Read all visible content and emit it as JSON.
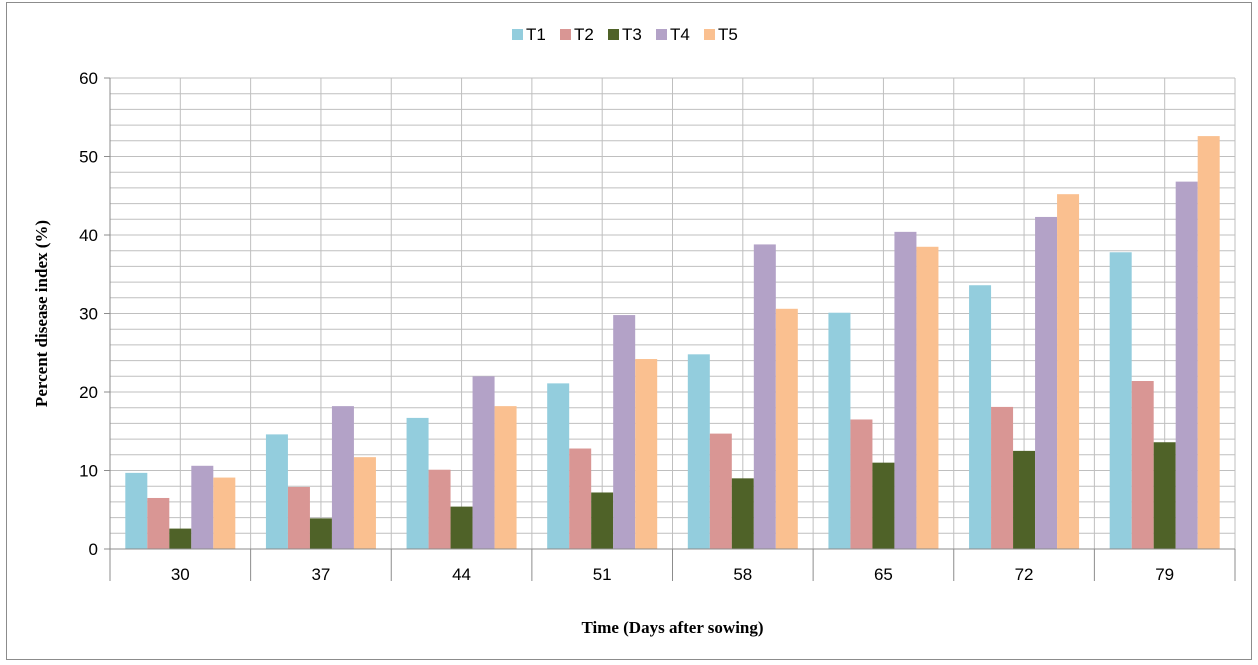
{
  "chart_data": {
    "type": "bar",
    "title": "",
    "xlabel": "Time (Days after sowing)",
    "ylabel": "Percent disease index (%)",
    "categories": [
      "30",
      "37",
      "44",
      "51",
      "58",
      "65",
      "72",
      "79"
    ],
    "ylim": [
      0,
      60
    ],
    "yticks": [
      "0",
      "10",
      "20",
      "30",
      "40",
      "50",
      "60"
    ],
    "grid": true,
    "legend_position": "top",
    "series": [
      {
        "name": "T1",
        "color": "#93cddd",
        "values": [
          9.7,
          14.6,
          16.7,
          21.1,
          24.8,
          30.1,
          33.6,
          37.8
        ]
      },
      {
        "name": "T2",
        "color": "#d99694",
        "values": [
          6.5,
          7.9,
          10.1,
          12.8,
          14.7,
          16.5,
          18.1,
          21.4
        ]
      },
      {
        "name": "T3",
        "color": "#4f6228",
        "values": [
          2.6,
          3.9,
          5.4,
          7.2,
          9.0,
          11.0,
          12.5,
          13.6
        ]
      },
      {
        "name": "T4",
        "color": "#b3a2c7",
        "values": [
          10.6,
          18.2,
          22.0,
          29.8,
          38.8,
          40.4,
          42.3,
          46.8
        ]
      },
      {
        "name": "T5",
        "color": "#fac090",
        "values": [
          9.1,
          11.7,
          18.2,
          24.2,
          30.6,
          38.5,
          45.2,
          52.6
        ]
      }
    ]
  }
}
